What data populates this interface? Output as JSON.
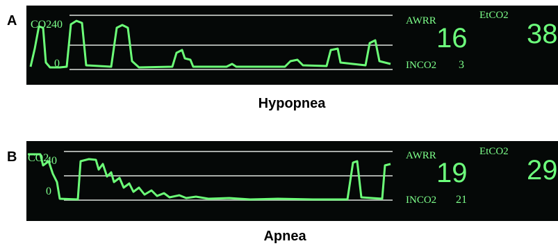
{
  "panels": [
    {
      "label": "A",
      "waveform_label": "CO2",
      "scale_top": "40",
      "scale_bottom": "0",
      "readings": {
        "awrr_name": "AWRR",
        "awrr": "16",
        "inco2_name": "INCO2",
        "inco2": "3",
        "etco2_name": "EtCO2",
        "etco2": "38"
      },
      "caption": "Hypopnea"
    },
    {
      "label": "B",
      "waveform_label": "CO2",
      "scale_top": "40",
      "scale_bottom": "0",
      "readings": {
        "awrr_name": "AWRR",
        "awrr": "19",
        "inco2_name": "INCO2",
        "inco2": "21",
        "etco2_name": "EtCO2",
        "etco2": "29"
      },
      "caption": "Apnea"
    }
  ]
}
